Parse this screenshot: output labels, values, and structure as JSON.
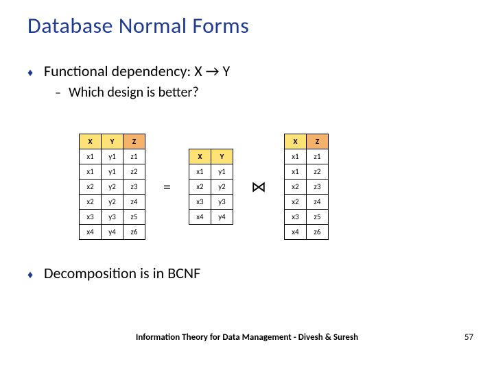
{
  "title": "Database Normal Forms",
  "bullets": {
    "b1": "Functional dependency: X → Y",
    "b1_sub1": "Which design is better?",
    "b2": "Decomposition is in BCNF"
  },
  "operators": {
    "equals": "=",
    "join": "⋈"
  },
  "colors": {
    "title": "#1f3a93",
    "header_xy": "#ffe275",
    "header_z": "#f5b26b"
  },
  "tables": {
    "left": {
      "columns": [
        "X",
        "Y",
        "Z"
      ],
      "header_classes": [
        "th-yellow",
        "th-yellow",
        "th-orange"
      ],
      "rows": [
        [
          "x1",
          "y1",
          "z1"
        ],
        [
          "x1",
          "y1",
          "z2"
        ],
        [
          "x2",
          "y2",
          "z3"
        ],
        [
          "x2",
          "y2",
          "z4"
        ],
        [
          "x3",
          "y3",
          "z5"
        ],
        [
          "x4",
          "y4",
          "z6"
        ]
      ]
    },
    "mid": {
      "columns": [
        "X",
        "Y"
      ],
      "header_classes": [
        "th-yellow",
        "th-yellow"
      ],
      "rows": [
        [
          "x1",
          "y1"
        ],
        [
          "x2",
          "y2"
        ],
        [
          "x3",
          "y3"
        ],
        [
          "x4",
          "y4"
        ]
      ]
    },
    "right": {
      "columns": [
        "X",
        "Z"
      ],
      "header_classes": [
        "th-yellow",
        "th-orange"
      ],
      "rows": [
        [
          "x1",
          "z1"
        ],
        [
          "x1",
          "z2"
        ],
        [
          "x2",
          "z3"
        ],
        [
          "x2",
          "z4"
        ],
        [
          "x3",
          "z5"
        ],
        [
          "x4",
          "z6"
        ]
      ]
    }
  },
  "footer": "Information Theory for Data Management - Divesh & Suresh",
  "page_number": "57"
}
